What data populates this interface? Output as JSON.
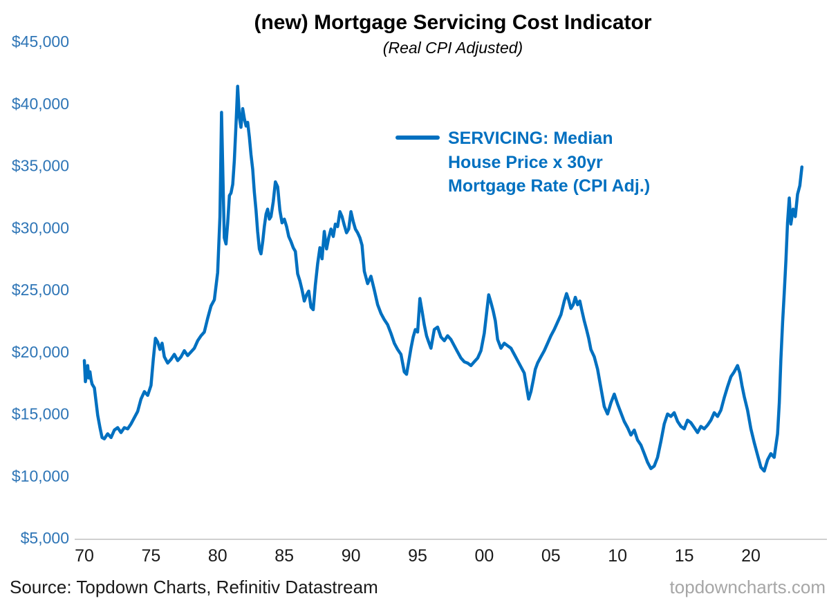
{
  "title": "(new) Mortgage Servicing Cost Indicator",
  "subtitle": "(Real CPI Adjusted)",
  "legend": {
    "lines": [
      "SERVICING: Median",
      "House Price x 30yr",
      "Mortgage Rate (CPI Adj.)"
    ]
  },
  "footer": {
    "source": "Source: Topdown Charts, Refinitiv Datastream",
    "site": "topdowncharts.com"
  },
  "colors": {
    "line": "#0070C0",
    "legend_text": "#0070C0",
    "ytick": "#2E75B6",
    "xtick": "#1A1A1A",
    "axis": "#BFBFBF",
    "site": "#A6A6A6"
  },
  "chart_data": {
    "type": "line",
    "title": "(new) Mortgage Servicing Cost Indicator",
    "subtitle": "(Real CPI Adjusted)",
    "xlabel": "",
    "ylabel": "",
    "grid": false,
    "legend_position": "upper-center",
    "xlim": [
      1969.5,
      2024.5
    ],
    "ylim": [
      5000,
      45000
    ],
    "yticks": [
      {
        "value": 5000,
        "label": "$5,000"
      },
      {
        "value": 10000,
        "label": "$10,000"
      },
      {
        "value": 15000,
        "label": "$15,000"
      },
      {
        "value": 20000,
        "label": "$20,000"
      },
      {
        "value": 25000,
        "label": "$25,000"
      },
      {
        "value": 30000,
        "label": "$30,000"
      },
      {
        "value": 35000,
        "label": "$35,000"
      },
      {
        "value": 40000,
        "label": "$40,000"
      },
      {
        "value": 45000,
        "label": "$45,000"
      }
    ],
    "xticks": [
      {
        "value": 1970,
        "label": "70"
      },
      {
        "value": 1975,
        "label": "75"
      },
      {
        "value": 1980,
        "label": "80"
      },
      {
        "value": 1985,
        "label": "85"
      },
      {
        "value": 1990,
        "label": "90"
      },
      {
        "value": 1995,
        "label": "95"
      },
      {
        "value": 2000,
        "label": "00"
      },
      {
        "value": 2005,
        "label": "05"
      },
      {
        "value": 2010,
        "label": "10"
      },
      {
        "value": 2015,
        "label": "15"
      },
      {
        "value": 2020,
        "label": "20"
      }
    ],
    "series": [
      {
        "name": "SERVICING: Median House Price x 30yr Mortgage Rate (CPI Adj.)",
        "points": [
          [
            1970.0,
            19400
          ],
          [
            1970.08,
            17700
          ],
          [
            1970.17,
            18300
          ],
          [
            1970.25,
            19000
          ],
          [
            1970.33,
            18000
          ],
          [
            1970.42,
            18500
          ],
          [
            1970.5,
            17900
          ],
          [
            1970.58,
            17500
          ],
          [
            1970.75,
            17200
          ],
          [
            1971.0,
            15000
          ],
          [
            1971.17,
            14000
          ],
          [
            1971.33,
            13200
          ],
          [
            1971.5,
            13100
          ],
          [
            1971.75,
            13500
          ],
          [
            1972.0,
            13200
          ],
          [
            1972.25,
            13800
          ],
          [
            1972.5,
            14000
          ],
          [
            1972.75,
            13600
          ],
          [
            1973.0,
            14000
          ],
          [
            1973.25,
            13900
          ],
          [
            1973.5,
            14300
          ],
          [
            1973.75,
            14800
          ],
          [
            1974.0,
            15300
          ],
          [
            1974.25,
            16300
          ],
          [
            1974.5,
            16900
          ],
          [
            1974.75,
            16600
          ],
          [
            1975.0,
            17400
          ],
          [
            1975.17,
            19500
          ],
          [
            1975.33,
            21200
          ],
          [
            1975.5,
            20900
          ],
          [
            1975.67,
            20300
          ],
          [
            1975.83,
            20800
          ],
          [
            1976.0,
            19700
          ],
          [
            1976.25,
            19200
          ],
          [
            1976.5,
            19500
          ],
          [
            1976.75,
            19900
          ],
          [
            1977.0,
            19400
          ],
          [
            1977.25,
            19700
          ],
          [
            1977.5,
            20200
          ],
          [
            1977.75,
            19800
          ],
          [
            1978.0,
            20100
          ],
          [
            1978.25,
            20400
          ],
          [
            1978.5,
            21000
          ],
          [
            1978.75,
            21400
          ],
          [
            1979.0,
            21700
          ],
          [
            1979.25,
            22800
          ],
          [
            1979.5,
            23800
          ],
          [
            1979.75,
            24300
          ],
          [
            1980.0,
            26500
          ],
          [
            1980.17,
            31000
          ],
          [
            1980.29,
            39400
          ],
          [
            1980.42,
            33000
          ],
          [
            1980.5,
            29300
          ],
          [
            1980.63,
            28800
          ],
          [
            1980.75,
            30500
          ],
          [
            1980.88,
            32700
          ],
          [
            1981.0,
            32900
          ],
          [
            1981.13,
            33600
          ],
          [
            1981.25,
            35500
          ],
          [
            1981.38,
            38500
          ],
          [
            1981.5,
            41500
          ],
          [
            1981.63,
            39000
          ],
          [
            1981.75,
            38200
          ],
          [
            1981.88,
            39700
          ],
          [
            1982.0,
            38900
          ],
          [
            1982.13,
            38300
          ],
          [
            1982.25,
            38600
          ],
          [
            1982.38,
            37400
          ],
          [
            1982.5,
            36000
          ],
          [
            1982.63,
            34800
          ],
          [
            1982.75,
            33000
          ],
          [
            1982.88,
            31500
          ],
          [
            1983.0,
            29800
          ],
          [
            1983.13,
            28400
          ],
          [
            1983.25,
            28000
          ],
          [
            1983.38,
            29000
          ],
          [
            1983.5,
            30200
          ],
          [
            1983.63,
            31200
          ],
          [
            1983.75,
            31600
          ],
          [
            1983.88,
            30800
          ],
          [
            1984.0,
            31000
          ],
          [
            1984.17,
            32200
          ],
          [
            1984.33,
            33800
          ],
          [
            1984.5,
            33400
          ],
          [
            1984.67,
            31500
          ],
          [
            1984.83,
            30500
          ],
          [
            1985.0,
            30800
          ],
          [
            1985.17,
            30200
          ],
          [
            1985.33,
            29400
          ],
          [
            1985.5,
            29000
          ],
          [
            1985.67,
            28500
          ],
          [
            1985.83,
            28200
          ],
          [
            1986.0,
            26400
          ],
          [
            1986.17,
            25800
          ],
          [
            1986.33,
            25100
          ],
          [
            1986.5,
            24200
          ],
          [
            1986.67,
            24700
          ],
          [
            1986.83,
            25000
          ],
          [
            1987.0,
            23700
          ],
          [
            1987.17,
            23500
          ],
          [
            1987.33,
            25500
          ],
          [
            1987.5,
            27200
          ],
          [
            1987.67,
            28500
          ],
          [
            1987.83,
            27600
          ],
          [
            1988.0,
            29800
          ],
          [
            1988.17,
            28400
          ],
          [
            1988.33,
            29300
          ],
          [
            1988.5,
            30000
          ],
          [
            1988.67,
            29400
          ],
          [
            1988.83,
            30400
          ],
          [
            1989.0,
            30200
          ],
          [
            1989.17,
            31400
          ],
          [
            1989.33,
            31000
          ],
          [
            1989.5,
            30300
          ],
          [
            1989.67,
            29700
          ],
          [
            1989.83,
            30000
          ],
          [
            1990.0,
            31400
          ],
          [
            1990.17,
            30600
          ],
          [
            1990.33,
            30000
          ],
          [
            1990.5,
            29700
          ],
          [
            1990.67,
            29300
          ],
          [
            1990.83,
            28700
          ],
          [
            1991.0,
            26600
          ],
          [
            1991.25,
            25600
          ],
          [
            1991.5,
            26200
          ],
          [
            1991.75,
            25100
          ],
          [
            1992.0,
            23900
          ],
          [
            1992.25,
            23200
          ],
          [
            1992.5,
            22700
          ],
          [
            1992.75,
            22300
          ],
          [
            1993.0,
            21600
          ],
          [
            1993.25,
            20800
          ],
          [
            1993.5,
            20300
          ],
          [
            1993.75,
            19900
          ],
          [
            1994.0,
            18500
          ],
          [
            1994.17,
            18300
          ],
          [
            1994.33,
            19300
          ],
          [
            1994.5,
            20400
          ],
          [
            1994.67,
            21300
          ],
          [
            1994.83,
            21900
          ],
          [
            1995.0,
            21700
          ],
          [
            1995.17,
            24400
          ],
          [
            1995.33,
            23400
          ],
          [
            1995.5,
            22300
          ],
          [
            1995.67,
            21400
          ],
          [
            1995.83,
            20900
          ],
          [
            1996.0,
            20400
          ],
          [
            1996.25,
            21900
          ],
          [
            1996.5,
            22100
          ],
          [
            1996.75,
            21300
          ],
          [
            1997.0,
            21000
          ],
          [
            1997.25,
            21400
          ],
          [
            1997.5,
            21100
          ],
          [
            1997.75,
            20600
          ],
          [
            1998.0,
            20100
          ],
          [
            1998.25,
            19600
          ],
          [
            1998.5,
            19300
          ],
          [
            1998.75,
            19200
          ],
          [
            1999.0,
            19000
          ],
          [
            1999.25,
            19300
          ],
          [
            1999.5,
            19600
          ],
          [
            1999.75,
            20200
          ],
          [
            2000.0,
            21600
          ],
          [
            2000.17,
            23200
          ],
          [
            2000.33,
            24700
          ],
          [
            2000.5,
            24100
          ],
          [
            2000.67,
            23400
          ],
          [
            2000.83,
            22600
          ],
          [
            2001.0,
            21100
          ],
          [
            2001.25,
            20400
          ],
          [
            2001.5,
            20800
          ],
          [
            2001.75,
            20600
          ],
          [
            2002.0,
            20400
          ],
          [
            2002.25,
            19900
          ],
          [
            2002.5,
            19400
          ],
          [
            2002.75,
            18900
          ],
          [
            2003.0,
            18400
          ],
          [
            2003.17,
            17300
          ],
          [
            2003.33,
            16300
          ],
          [
            2003.5,
            16900
          ],
          [
            2003.67,
            17800
          ],
          [
            2003.83,
            18700
          ],
          [
            2004.0,
            19200
          ],
          [
            2004.25,
            19700
          ],
          [
            2004.5,
            20200
          ],
          [
            2004.75,
            20800
          ],
          [
            2005.0,
            21400
          ],
          [
            2005.25,
            21900
          ],
          [
            2005.5,
            22500
          ],
          [
            2005.75,
            23100
          ],
          [
            2006.0,
            24200
          ],
          [
            2006.17,
            24800
          ],
          [
            2006.33,
            24300
          ],
          [
            2006.5,
            23600
          ],
          [
            2006.67,
            23900
          ],
          [
            2006.83,
            24500
          ],
          [
            2007.0,
            23900
          ],
          [
            2007.17,
            24200
          ],
          [
            2007.33,
            23400
          ],
          [
            2007.5,
            22600
          ],
          [
            2007.67,
            21900
          ],
          [
            2007.83,
            21200
          ],
          [
            2008.0,
            20300
          ],
          [
            2008.25,
            19700
          ],
          [
            2008.5,
            18700
          ],
          [
            2008.75,
            17200
          ],
          [
            2009.0,
            15700
          ],
          [
            2009.25,
            15100
          ],
          [
            2009.5,
            16000
          ],
          [
            2009.75,
            16700
          ],
          [
            2010.0,
            15900
          ],
          [
            2010.25,
            15200
          ],
          [
            2010.5,
            14500
          ],
          [
            2010.75,
            14000
          ],
          [
            2011.0,
            13400
          ],
          [
            2011.25,
            13800
          ],
          [
            2011.5,
            13000
          ],
          [
            2011.75,
            12600
          ],
          [
            2012.0,
            11900
          ],
          [
            2012.25,
            11200
          ],
          [
            2012.5,
            10700
          ],
          [
            2012.75,
            10900
          ],
          [
            2013.0,
            11600
          ],
          [
            2013.25,
            12900
          ],
          [
            2013.5,
            14300
          ],
          [
            2013.75,
            15100
          ],
          [
            2014.0,
            14900
          ],
          [
            2014.25,
            15200
          ],
          [
            2014.5,
            14500
          ],
          [
            2014.75,
            14100
          ],
          [
            2015.0,
            13900
          ],
          [
            2015.25,
            14600
          ],
          [
            2015.5,
            14400
          ],
          [
            2015.75,
            14000
          ],
          [
            2016.0,
            13600
          ],
          [
            2016.25,
            14100
          ],
          [
            2016.5,
            13900
          ],
          [
            2016.75,
            14200
          ],
          [
            2017.0,
            14600
          ],
          [
            2017.25,
            15200
          ],
          [
            2017.5,
            14900
          ],
          [
            2017.75,
            15400
          ],
          [
            2018.0,
            16400
          ],
          [
            2018.25,
            17300
          ],
          [
            2018.5,
            18100
          ],
          [
            2018.75,
            18500
          ],
          [
            2019.0,
            19000
          ],
          [
            2019.17,
            18400
          ],
          [
            2019.33,
            17400
          ],
          [
            2019.5,
            16500
          ],
          [
            2019.75,
            15400
          ],
          [
            2020.0,
            13900
          ],
          [
            2020.25,
            12800
          ],
          [
            2020.5,
            11800
          ],
          [
            2020.75,
            10800
          ],
          [
            2021.0,
            10500
          ],
          [
            2021.25,
            11400
          ],
          [
            2021.5,
            11900
          ],
          [
            2021.75,
            11600
          ],
          [
            2022.0,
            13500
          ],
          [
            2022.13,
            16000
          ],
          [
            2022.25,
            19500
          ],
          [
            2022.38,
            22500
          ],
          [
            2022.5,
            24800
          ],
          [
            2022.63,
            27500
          ],
          [
            2022.75,
            30500
          ],
          [
            2022.88,
            32500
          ],
          [
            2023.0,
            30400
          ],
          [
            2023.17,
            31600
          ],
          [
            2023.33,
            31000
          ],
          [
            2023.5,
            32800
          ],
          [
            2023.67,
            33500
          ],
          [
            2023.83,
            35000
          ]
        ]
      }
    ]
  }
}
